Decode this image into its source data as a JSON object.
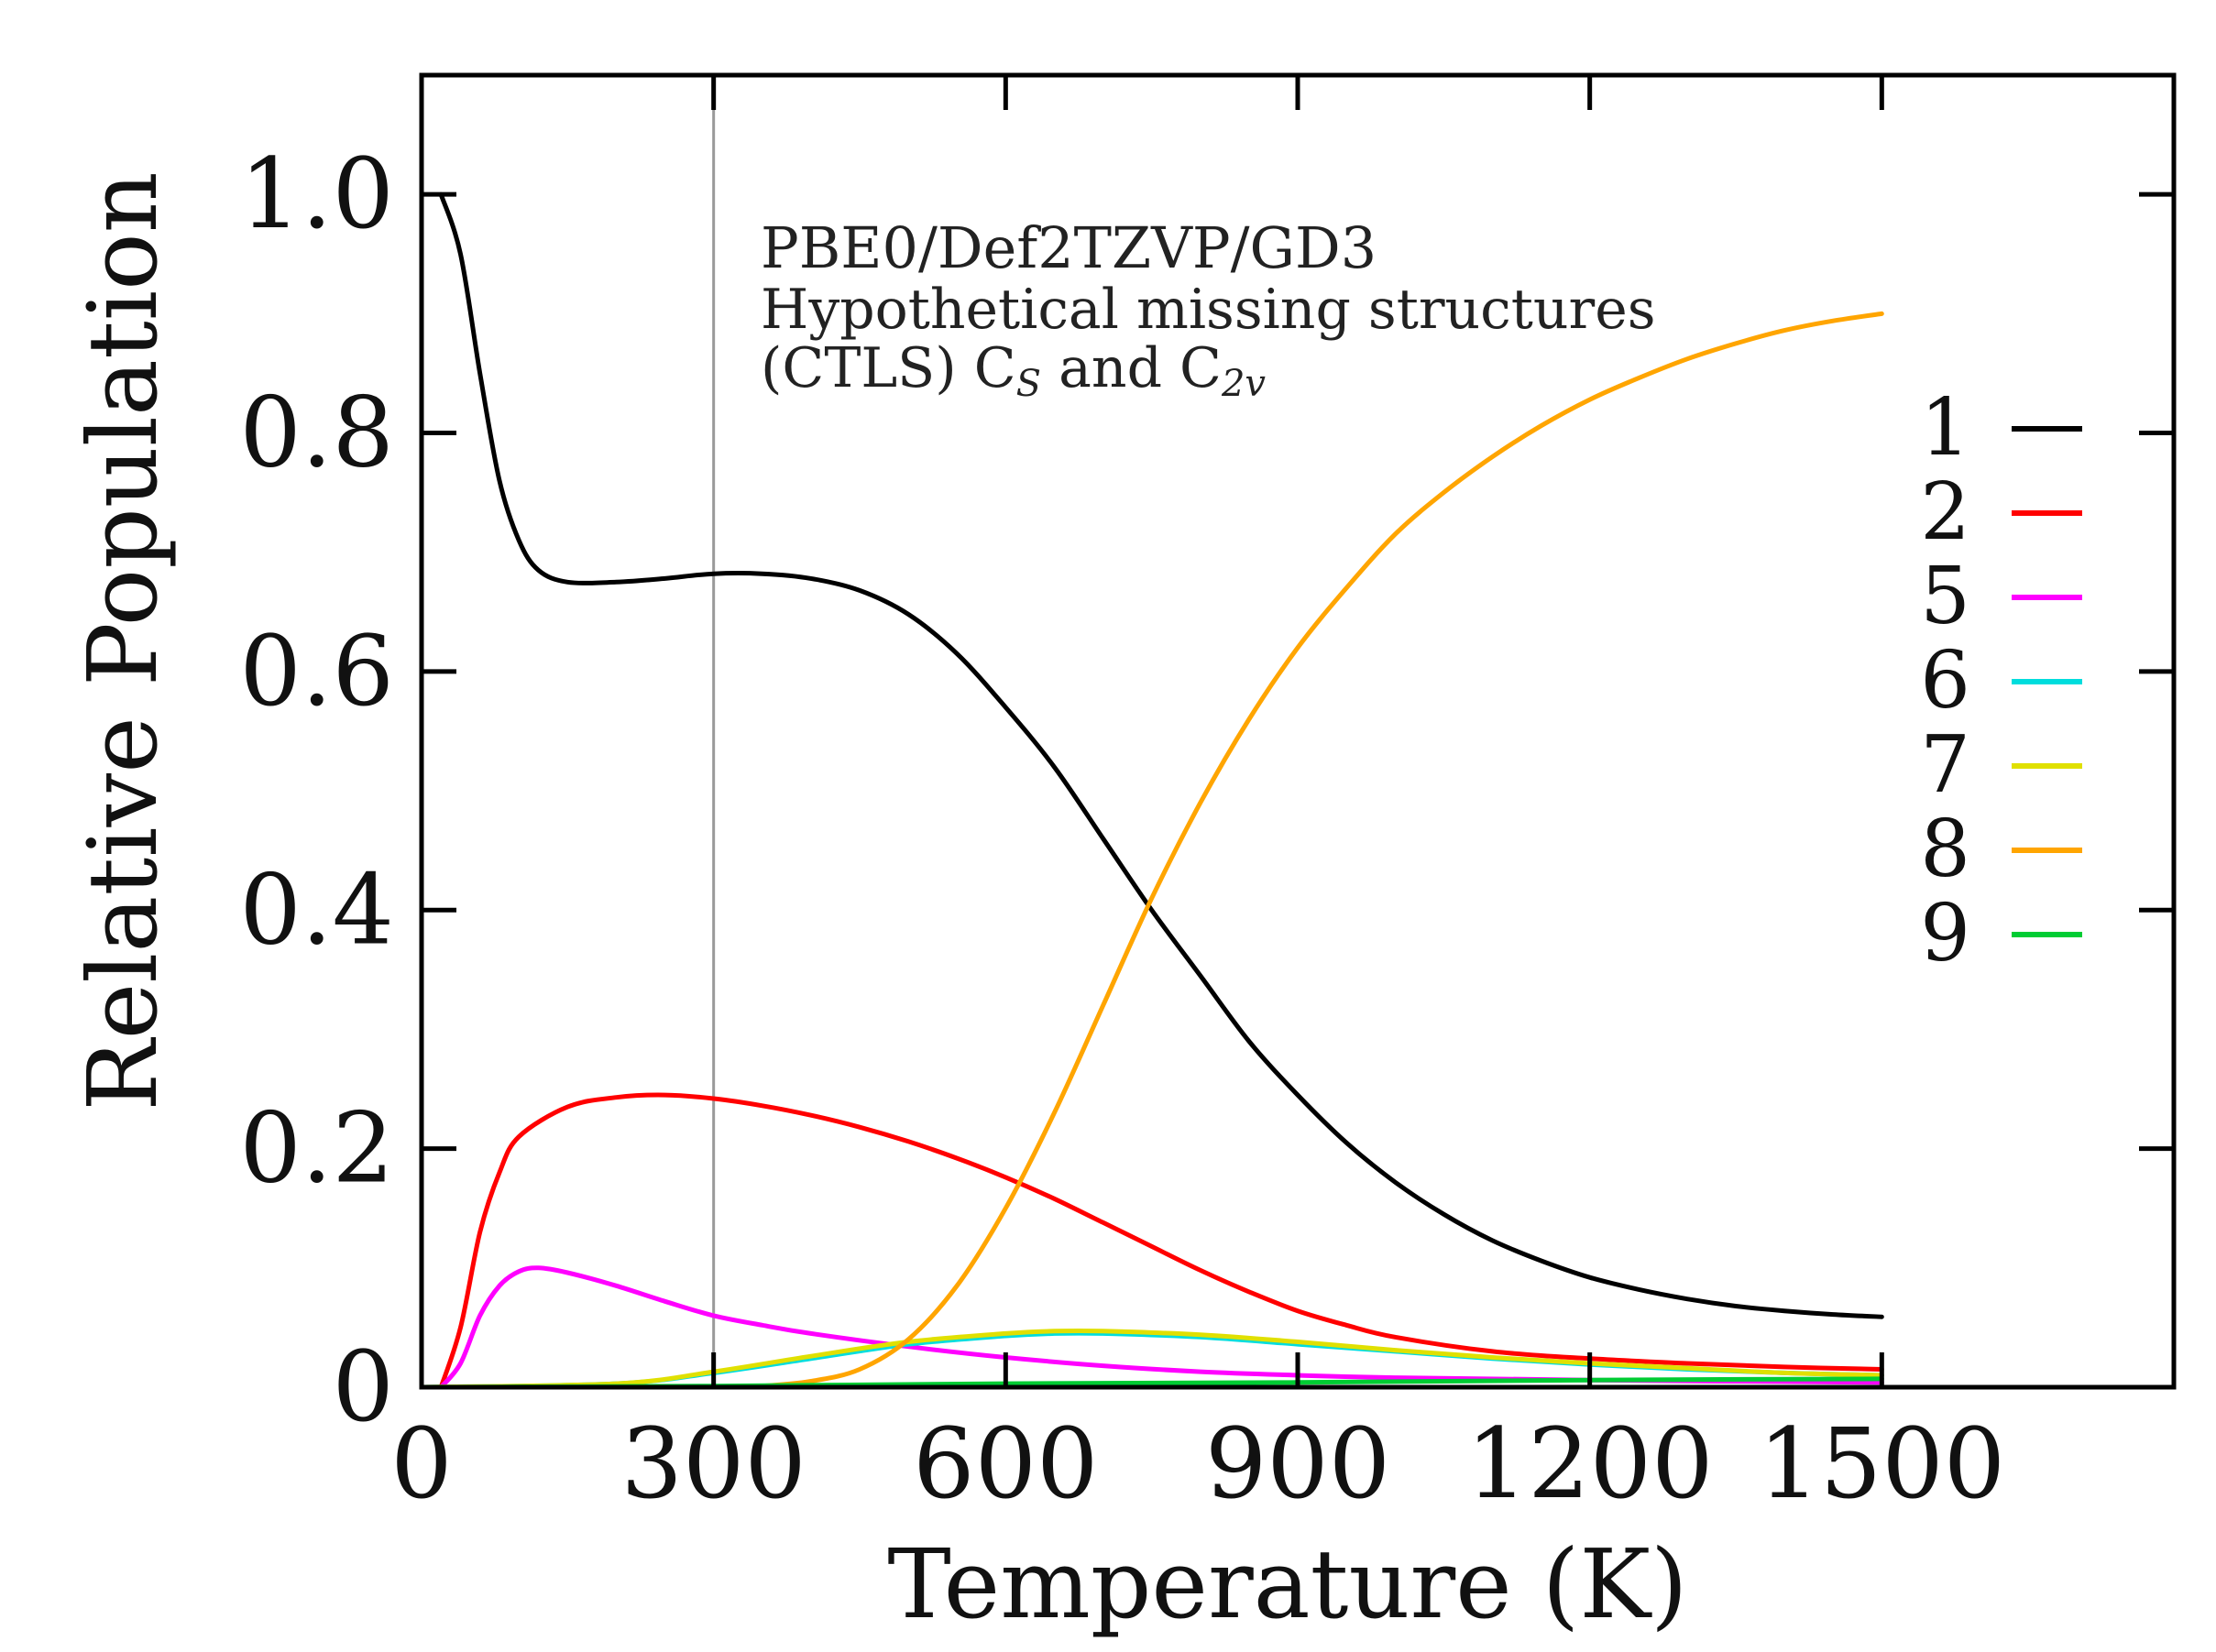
{
  "chart_data": {
    "type": "line",
    "title": "",
    "annotations": {
      "line1": "PBE0/Def2TZVP/GD3",
      "line2": "Hypothetical missing structures",
      "line3_prefix": "(CTLS) C",
      "line3_sub1": "S",
      "line3_mid": " and C",
      "line3_sub2": "2v"
    },
    "xlabel": "Temperature (K)",
    "ylabel": "Relative Population",
    "xlim": [
      0,
      1800
    ],
    "ylim": [
      0,
      1.1
    ],
    "xticks": [
      0,
      300,
      600,
      900,
      1200,
      1500
    ],
    "xtick_labels": [
      "0",
      "300",
      "600",
      "900",
      "1200",
      "1500"
    ],
    "yticks": [
      0,
      0.2,
      0.4,
      0.6,
      0.8,
      1.0
    ],
    "ytick_labels": [
      "0",
      "0.2",
      "0.4",
      "0.6",
      "0.8",
      "1.0"
    ],
    "reference_line_x": 300,
    "legend_position": "right",
    "series": [
      {
        "name": "1",
        "color": "#000000",
        "x": [
          20,
          40,
          60,
          80,
          100,
          120,
          150,
          200,
          250,
          300,
          350,
          400,
          450,
          500,
          550,
          600,
          650,
          700,
          750,
          800,
          850,
          900,
          950,
          1000,
          1050,
          1100,
          1150,
          1200,
          1250,
          1300,
          1350,
          1400,
          1450,
          1500
        ],
        "y": [
          1.0,
          0.95,
          0.85,
          0.76,
          0.71,
          0.685,
          0.675,
          0.675,
          0.678,
          0.682,
          0.682,
          0.678,
          0.668,
          0.648,
          0.615,
          0.57,
          0.52,
          0.46,
          0.4,
          0.345,
          0.29,
          0.245,
          0.205,
          0.172,
          0.145,
          0.123,
          0.106,
          0.092,
          0.082,
          0.074,
          0.068,
          0.064,
          0.061,
          0.059
        ]
      },
      {
        "name": "2",
        "color": "#ff0000",
        "x": [
          20,
          40,
          60,
          80,
          100,
          150,
          200,
          250,
          300,
          350,
          400,
          450,
          500,
          550,
          600,
          650,
          700,
          750,
          800,
          850,
          900,
          950,
          1000,
          1100,
          1200,
          1300,
          1400,
          1500
        ],
        "y": [
          0.0,
          0.05,
          0.13,
          0.18,
          0.21,
          0.235,
          0.243,
          0.245,
          0.242,
          0.236,
          0.228,
          0.218,
          0.206,
          0.192,
          0.176,
          0.158,
          0.138,
          0.118,
          0.098,
          0.08,
          0.064,
          0.052,
          0.042,
          0.03,
          0.024,
          0.02,
          0.017,
          0.015
        ]
      },
      {
        "name": "5",
        "color": "#ff00ff",
        "x": [
          20,
          40,
          60,
          80,
          100,
          120,
          150,
          200,
          250,
          300,
          350,
          400,
          500,
          600,
          700,
          800,
          900,
          1000,
          1200,
          1500
        ],
        "y": [
          0.0,
          0.02,
          0.06,
          0.085,
          0.097,
          0.1,
          0.096,
          0.085,
          0.072,
          0.06,
          0.052,
          0.045,
          0.034,
          0.025,
          0.018,
          0.013,
          0.01,
          0.008,
          0.006,
          0.004
        ]
      },
      {
        "name": "6",
        "color": "#00dddd",
        "x": [
          0,
          200,
          300,
          400,
          500,
          600,
          650,
          700,
          800,
          900,
          1000,
          1100,
          1200,
          1300,
          1400,
          1500
        ],
        "y": [
          0.0,
          0.003,
          0.012,
          0.024,
          0.036,
          0.043,
          0.045,
          0.045,
          0.042,
          0.036,
          0.03,
          0.024,
          0.019,
          0.015,
          0.012,
          0.01
        ]
      },
      {
        "name": "7",
        "color": "#e0e000",
        "x": [
          0,
          200,
          300,
          400,
          500,
          600,
          650,
          700,
          800,
          900,
          1000,
          1100,
          1200,
          1300,
          1400,
          1500
        ],
        "y": [
          0.0,
          0.003,
          0.013,
          0.026,
          0.038,
          0.045,
          0.047,
          0.047,
          0.044,
          0.038,
          0.031,
          0.025,
          0.02,
          0.016,
          0.012,
          0.01
        ]
      },
      {
        "name": "8",
        "color": "#ffa500",
        "x": [
          300,
          350,
          400,
          450,
          500,
          550,
          600,
          650,
          700,
          750,
          800,
          850,
          900,
          950,
          1000,
          1050,
          1100,
          1150,
          1200,
          1250,
          1300,
          1350,
          1400,
          1450,
          1500
        ],
        "y": [
          0.0,
          0.001,
          0.005,
          0.015,
          0.04,
          0.085,
          0.15,
          0.23,
          0.32,
          0.41,
          0.49,
          0.56,
          0.62,
          0.67,
          0.715,
          0.75,
          0.78,
          0.806,
          0.828,
          0.846,
          0.862,
          0.875,
          0.886,
          0.894,
          0.9
        ]
      },
      {
        "name": "9",
        "color": "#00cc33",
        "x": [
          0,
          300,
          600,
          900,
          1200,
          1500
        ],
        "y": [
          0.0,
          0.001,
          0.003,
          0.004,
          0.006,
          0.007
        ]
      }
    ]
  }
}
